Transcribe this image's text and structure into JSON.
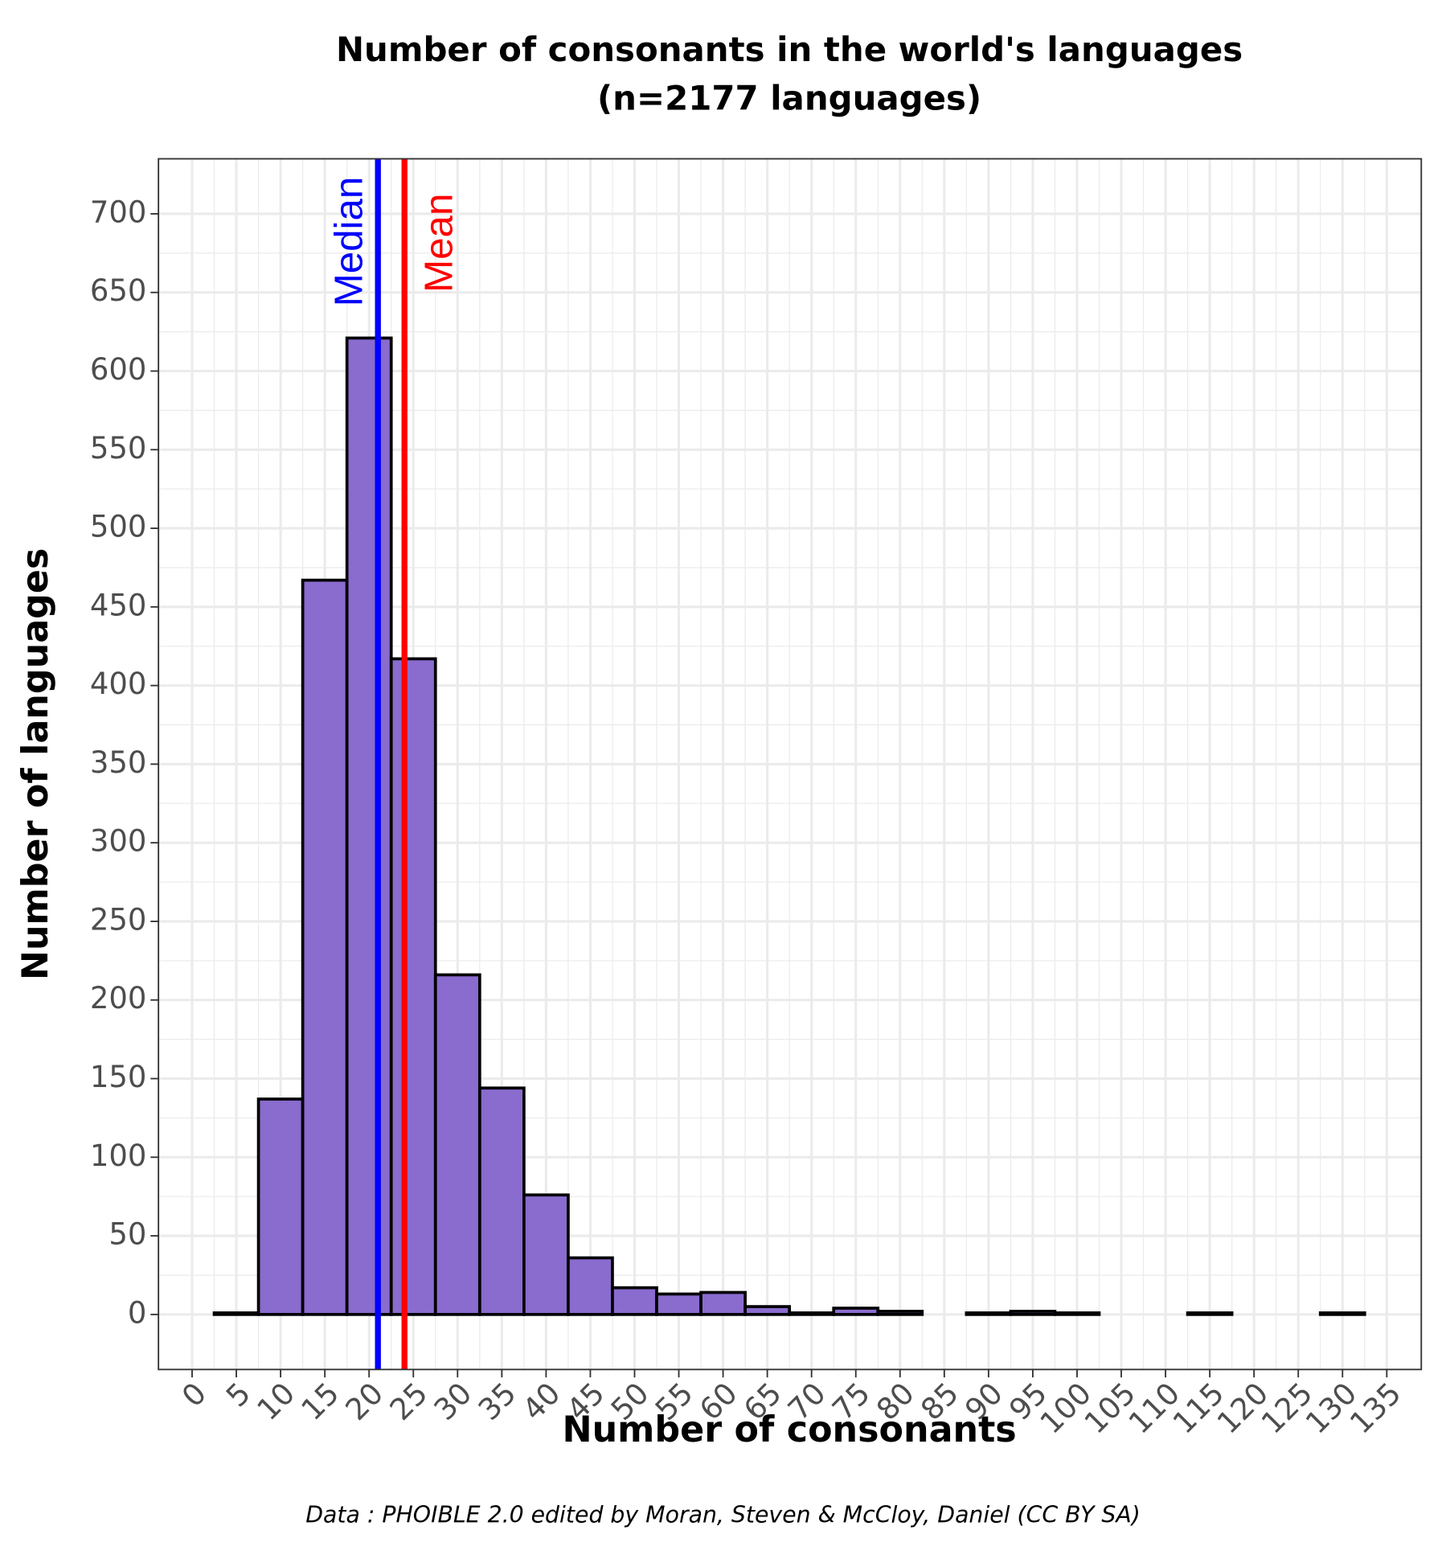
{
  "chart_data": {
    "type": "histogram",
    "title": "Number of consonants in the world's languages",
    "subtitle": "(n=2177 languages)",
    "x_label": "Number of consonants",
    "y_label": "Number of languages",
    "caption": "Data : PHOIBLE 2.0 edited by Moran, Steven & McCloy, Daniel (CC BY SA)",
    "bins": [
      2.5,
      7.5,
      12.5,
      17.5,
      22.5,
      27.5,
      32.5,
      37.5,
      42.5,
      47.5,
      52.5,
      57.5,
      62.5,
      67.5,
      72.5,
      77.5,
      82.5,
      87.5,
      92.5,
      97.5,
      102.5,
      107.5,
      112.5,
      117.5,
      122.5,
      127.5,
      132.5
    ],
    "values": [
      1,
      137,
      467,
      621,
      417,
      216,
      144,
      76,
      36,
      17,
      13,
      14,
      5,
      1,
      4,
      2,
      0,
      1,
      2,
      1,
      0,
      0,
      1,
      0,
      0,
      1
    ],
    "color": "#8a6bce",
    "edge_color": "#000000",
    "xlim": [
      -3.8,
      138.9
    ],
    "ylim": [
      -35,
      735
    ],
    "xticks": [
      0,
      5,
      10,
      15,
      20,
      25,
      30,
      35,
      40,
      45,
      50,
      55,
      60,
      65,
      70,
      75,
      80,
      85,
      90,
      95,
      100,
      105,
      110,
      115,
      120,
      125,
      130,
      135
    ],
    "yticks": [
      0,
      50,
      100,
      150,
      200,
      250,
      300,
      350,
      400,
      450,
      500,
      550,
      600,
      650,
      700
    ],
    "grid": true,
    "minor_grid": true,
    "vlines": [
      {
        "name": "Median",
        "value": 21,
        "color": "#0000ff"
      },
      {
        "name": "Mean",
        "value": 24,
        "color": "#ff0000"
      }
    ]
  }
}
